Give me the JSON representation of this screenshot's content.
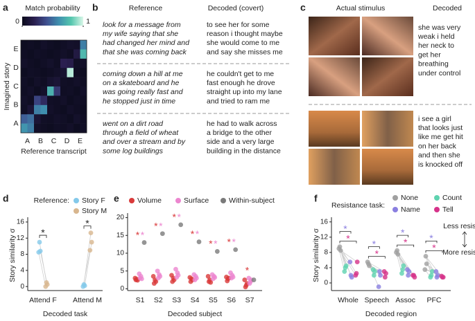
{
  "chart_data": [
    {
      "type": "heatmap",
      "label": "a",
      "title": "Match probability",
      "ylabel": "Imagined story",
      "xlabel": "Reference transcript",
      "x_categories": [
        "A",
        "B",
        "C",
        "D",
        "E"
      ],
      "y_categories": [
        "E",
        "D",
        "C",
        "B",
        "A"
      ],
      "clim": [
        0,
        1
      ],
      "colorbar_ticks": [
        0,
        1
      ],
      "colormap": [
        "#0b0b1c",
        "#2a1f4f",
        "#3f4f8f",
        "#3f8fae",
        "#55c6ae",
        "#d9f7e8"
      ],
      "values": [
        [
          0.02,
          0.03,
          0.02,
          0.05,
          0.03,
          0.02,
          0.04,
          0.06,
          0.05,
          0.55
        ],
        [
          0.03,
          0.02,
          0.04,
          0.03,
          0.02,
          0.03,
          0.05,
          0.03,
          0.15,
          0.75
        ],
        [
          0.05,
          0.03,
          0.02,
          0.04,
          0.06,
          0.03,
          0.2,
          0.18,
          0.04,
          0.05
        ],
        [
          0.02,
          0.04,
          0.03,
          0.02,
          0.03,
          0.05,
          0.08,
          0.95,
          0.03,
          0.02
        ],
        [
          0.04,
          0.02,
          0.05,
          0.03,
          0.08,
          0.1,
          0.04,
          0.03,
          0.05,
          0.03
        ],
        [
          0.03,
          0.05,
          0.02,
          0.06,
          0.72,
          0.3,
          0.03,
          0.04,
          0.02,
          0.05
        ],
        [
          0.05,
          0.03,
          0.35,
          0.25,
          0.04,
          0.03,
          0.05,
          0.02,
          0.04,
          0.03
        ],
        [
          0.04,
          0.1,
          0.55,
          0.6,
          0.05,
          0.03,
          0.02,
          0.05,
          0.03,
          0.02
        ],
        [
          0.45,
          0.5,
          0.1,
          0.04,
          0.03,
          0.05,
          0.04,
          0.02,
          0.06,
          0.03
        ],
        [
          0.62,
          0.55,
          0.05,
          0.03,
          0.02,
          0.04,
          0.03,
          0.05,
          0.02,
          0.04
        ]
      ]
    },
    {
      "type": "scatter",
      "label": "d",
      "ylabel": "Story similarity σ",
      "xlabel": "Decoded task",
      "legend_title": "Reference:",
      "categories": [
        "Attend F",
        "Attend M"
      ],
      "ylim": [
        -1,
        16.5
      ],
      "yticks": [
        0,
        4,
        8,
        12,
        16
      ],
      "connect": "pairs",
      "significance": [
        "*",
        "*"
      ],
      "series": [
        {
          "name": "Story F",
          "color": "#84c9ea",
          "values": [
            [
              11.0,
              8.8,
              8.5
            ],
            [
              0.5,
              0.2,
              0.0
            ]
          ]
        },
        {
          "name": "Story M",
          "color": "#d8b68e",
          "values": [
            [
              1.0,
              0.5,
              0.0
            ],
            [
              13.3,
              11.0,
              9.0
            ]
          ]
        }
      ]
    },
    {
      "type": "scatter",
      "label": "e",
      "xlabel": "Decoded subject",
      "categories": [
        "S1",
        "S2",
        "S3",
        "S4",
        "S5",
        "S6",
        "S7"
      ],
      "ylim": [
        -0.5,
        20.5
      ],
      "yticks": [
        0,
        5,
        10,
        15,
        20
      ],
      "connect": "none",
      "series": [
        {
          "name": "Volume",
          "color": "#d93a3a",
          "significance": [
            "*",
            "*",
            "*",
            "*",
            "*",
            "*",
            "*"
          ],
          "values": [
            [
              2.5,
              2.7,
              3.0,
              2.4
            ],
            [
              1.5,
              2.5,
              3.5,
              2.0
            ],
            [
              2.0,
              3.0,
              3.8,
              2.5
            ],
            [
              2.0,
              2.8,
              3.2,
              2.5
            ],
            [
              2.0,
              2.5,
              3.5,
              1.8
            ],
            [
              2.2,
              2.8,
              3.3,
              3.0
            ],
            [
              0.5,
              1.0,
              2.5,
              1.5
            ]
          ]
        },
        {
          "name": "Surface",
          "color": "#ec86cf",
          "significance": [
            "*",
            "*",
            "*",
            "*",
            "*",
            "*",
            null
          ],
          "values": [
            [
              3.0,
              3.5,
              4.2,
              2.8
            ],
            [
              3.0,
              4.0,
              5.0,
              3.5
            ],
            [
              3.2,
              4.5,
              5.5,
              3.8
            ],
            [
              2.5,
              3.5,
              4.0,
              3.0
            ],
            [
              2.8,
              3.5,
              4.0,
              3.2
            ],
            [
              3.0,
              3.8,
              4.5,
              3.3
            ],
            [
              1.5,
              2.0,
              3.0,
              2.5
            ]
          ]
        },
        {
          "name": "Within-subject",
          "color": "#7a7a7a",
          "values": [
            [
              13.0
            ],
            [
              15.5
            ],
            [
              18.0
            ],
            [
              13.2
            ],
            [
              10.5
            ],
            [
              11.0
            ],
            [
              2.5
            ]
          ]
        }
      ]
    },
    {
      "type": "scatter",
      "label": "f",
      "ylabel": "Story similarity σ",
      "xlabel": "Decoded region",
      "legend_title": "Resistance task:",
      "categories": [
        "Whole",
        "Speech",
        "Assoc",
        "PFC"
      ],
      "ylim": [
        -2,
        16.5
      ],
      "yticks": [
        0,
        4,
        8,
        12,
        16
      ],
      "connect": "from_first",
      "side_labels": [
        "Less resisted",
        "More resisted"
      ],
      "series": [
        {
          "name": "None",
          "color": "#a0a0a0",
          "values": [
            [
              9.5,
              8.5,
              9.0
            ],
            [
              5.0,
              4.5,
              5.5
            ],
            [
              8.5,
              7.5,
              8.0
            ],
            [
              7.0,
              5.0,
              3.5
            ]
          ]
        },
        {
          "name": "Count",
          "color": "#5fd3b0",
          "values": [
            [
              4.0,
              4.5,
              3.0
            ],
            [
              2.0,
              3.0,
              3.5
            ],
            [
              3.5,
              4.5,
              2.5
            ],
            [
              2.0,
              3.0,
              1.5
            ]
          ]
        },
        {
          "name": "Name",
          "color": "#8a7fe0",
          "significance": [
            "*",
            "*",
            "*",
            "*"
          ],
          "values": [
            [
              2.0,
              1.5,
              5.5
            ],
            [
              3.0,
              2.0,
              -1.0
            ],
            [
              2.0,
              3.0,
              3.5
            ],
            [
              1.5,
              2.0,
              3.0
            ]
          ]
        },
        {
          "name": "Tell",
          "color": "#d6338a",
          "significance": [
            "*",
            "*",
            "*",
            "*"
          ],
          "values": [
            [
              2.5,
              5.5,
              2.0
            ],
            [
              1.5,
              2.5,
              3.0
            ],
            [
              2.0,
              1.5,
              2.0
            ],
            [
              1.5,
              1.5,
              1.8
            ]
          ]
        }
      ]
    }
  ],
  "panel_b": {
    "label": "b",
    "headers": [
      "Reference",
      "Decoded (covert)"
    ],
    "rows": [
      {
        "reference": [
          "look for a message from",
          "my wife saying that she",
          "had changed her mind and",
          "that she was coming back"
        ],
        "decoded": [
          "to see her for some",
          "reason i thought maybe",
          "she would come to me",
          "and say she misses me"
        ]
      },
      {
        "reference": [
          "coming down a hill at me",
          "on a skateboard and he",
          "was going really fast and",
          "he stopped just in time"
        ],
        "decoded": [
          "he couldn't get to me",
          "fast enough he drove",
          "straight up into my lane",
          "and tried to ram me"
        ]
      },
      {
        "reference": [
          "went on a dirt road",
          "through a field of wheat",
          "and over a stream and by",
          "some log buildings"
        ],
        "decoded": [
          "he had to walk across",
          "a bridge to the other",
          "side and a very large",
          "building in the distance"
        ]
      }
    ]
  },
  "panel_c": {
    "label": "c",
    "headers": [
      "Actual stimulus",
      "Decoded"
    ],
    "rows": [
      {
        "decoded": [
          "she was very",
          "weak i held",
          "her neck to",
          "get her",
          "breathing",
          "under control"
        ]
      },
      {
        "decoded": [
          "i see a girl",
          "that looks just",
          "like me get hit",
          "on her back",
          "and then she",
          "is knocked off"
        ]
      }
    ]
  }
}
